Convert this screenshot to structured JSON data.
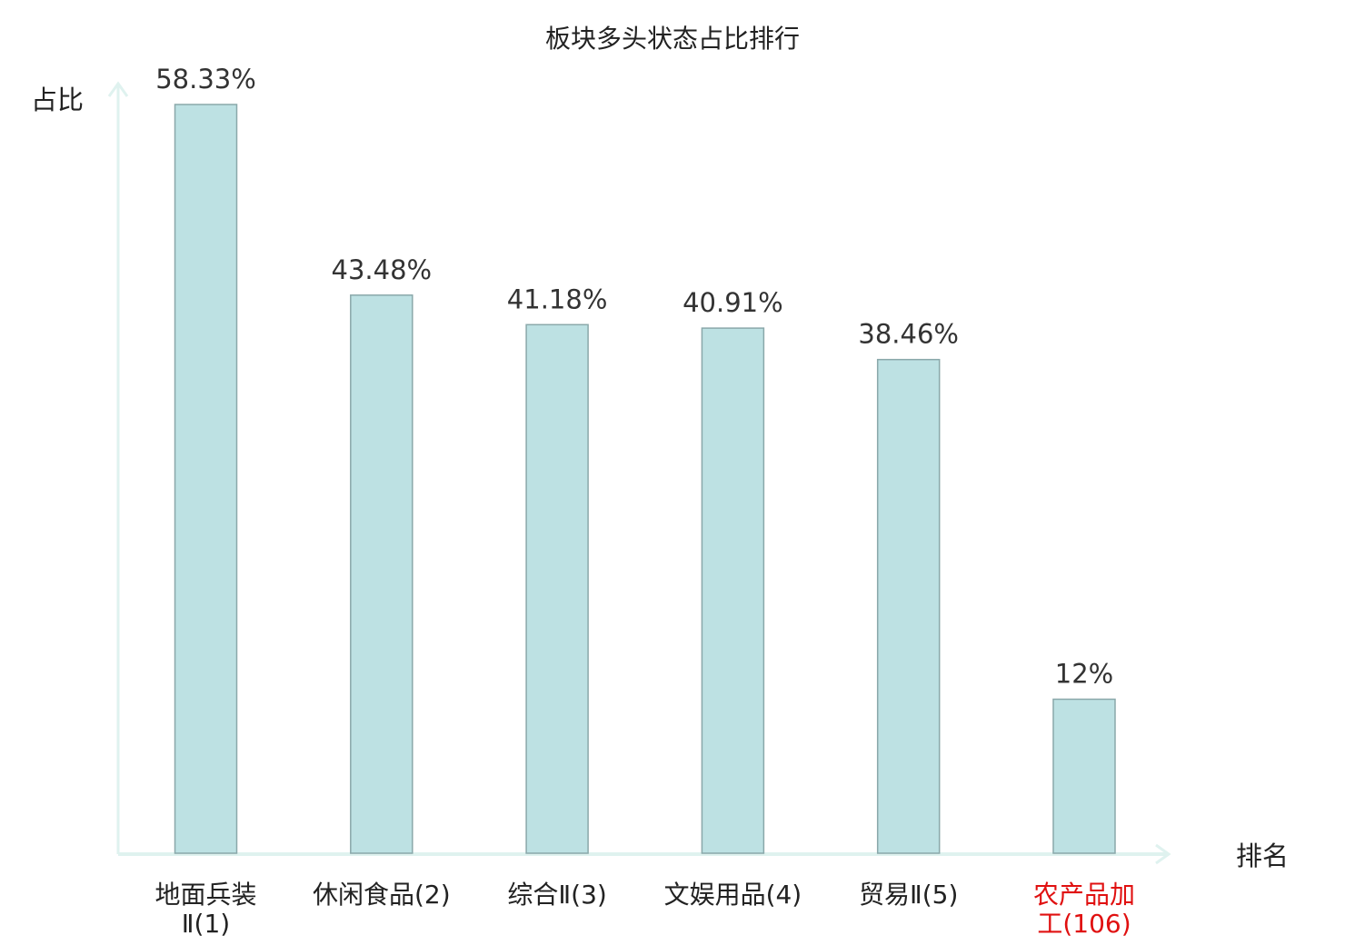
{
  "chart_data": {
    "type": "bar",
    "title": "板块多头状态占比排行",
    "ylabel": "占比",
    "xlabel": "排名",
    "categories": [
      [
        "地面兵装",
        "Ⅱ(1)"
      ],
      [
        "休闲食品(2)"
      ],
      [
        "综合Ⅱ(3)"
      ],
      [
        "文娱用品(4)"
      ],
      [
        "贸易Ⅱ(5)"
      ],
      [
        "农产品加",
        "工(106)"
      ]
    ],
    "values": [
      58.33,
      43.48,
      41.18,
      40.91,
      38.46,
      12
    ],
    "value_labels": [
      "58.33%",
      "43.48%",
      "41.18%",
      "40.91%",
      "38.46%",
      "12%"
    ],
    "highlight_index": 5,
    "ylim": [
      0,
      58.33
    ],
    "grid": false,
    "colors": {
      "bar_fill": "#bde1e3",
      "bar_stroke": "#8aa8aa",
      "axis": "#dff2ef",
      "highlight_label": "#e01010",
      "text": "#222222"
    }
  }
}
